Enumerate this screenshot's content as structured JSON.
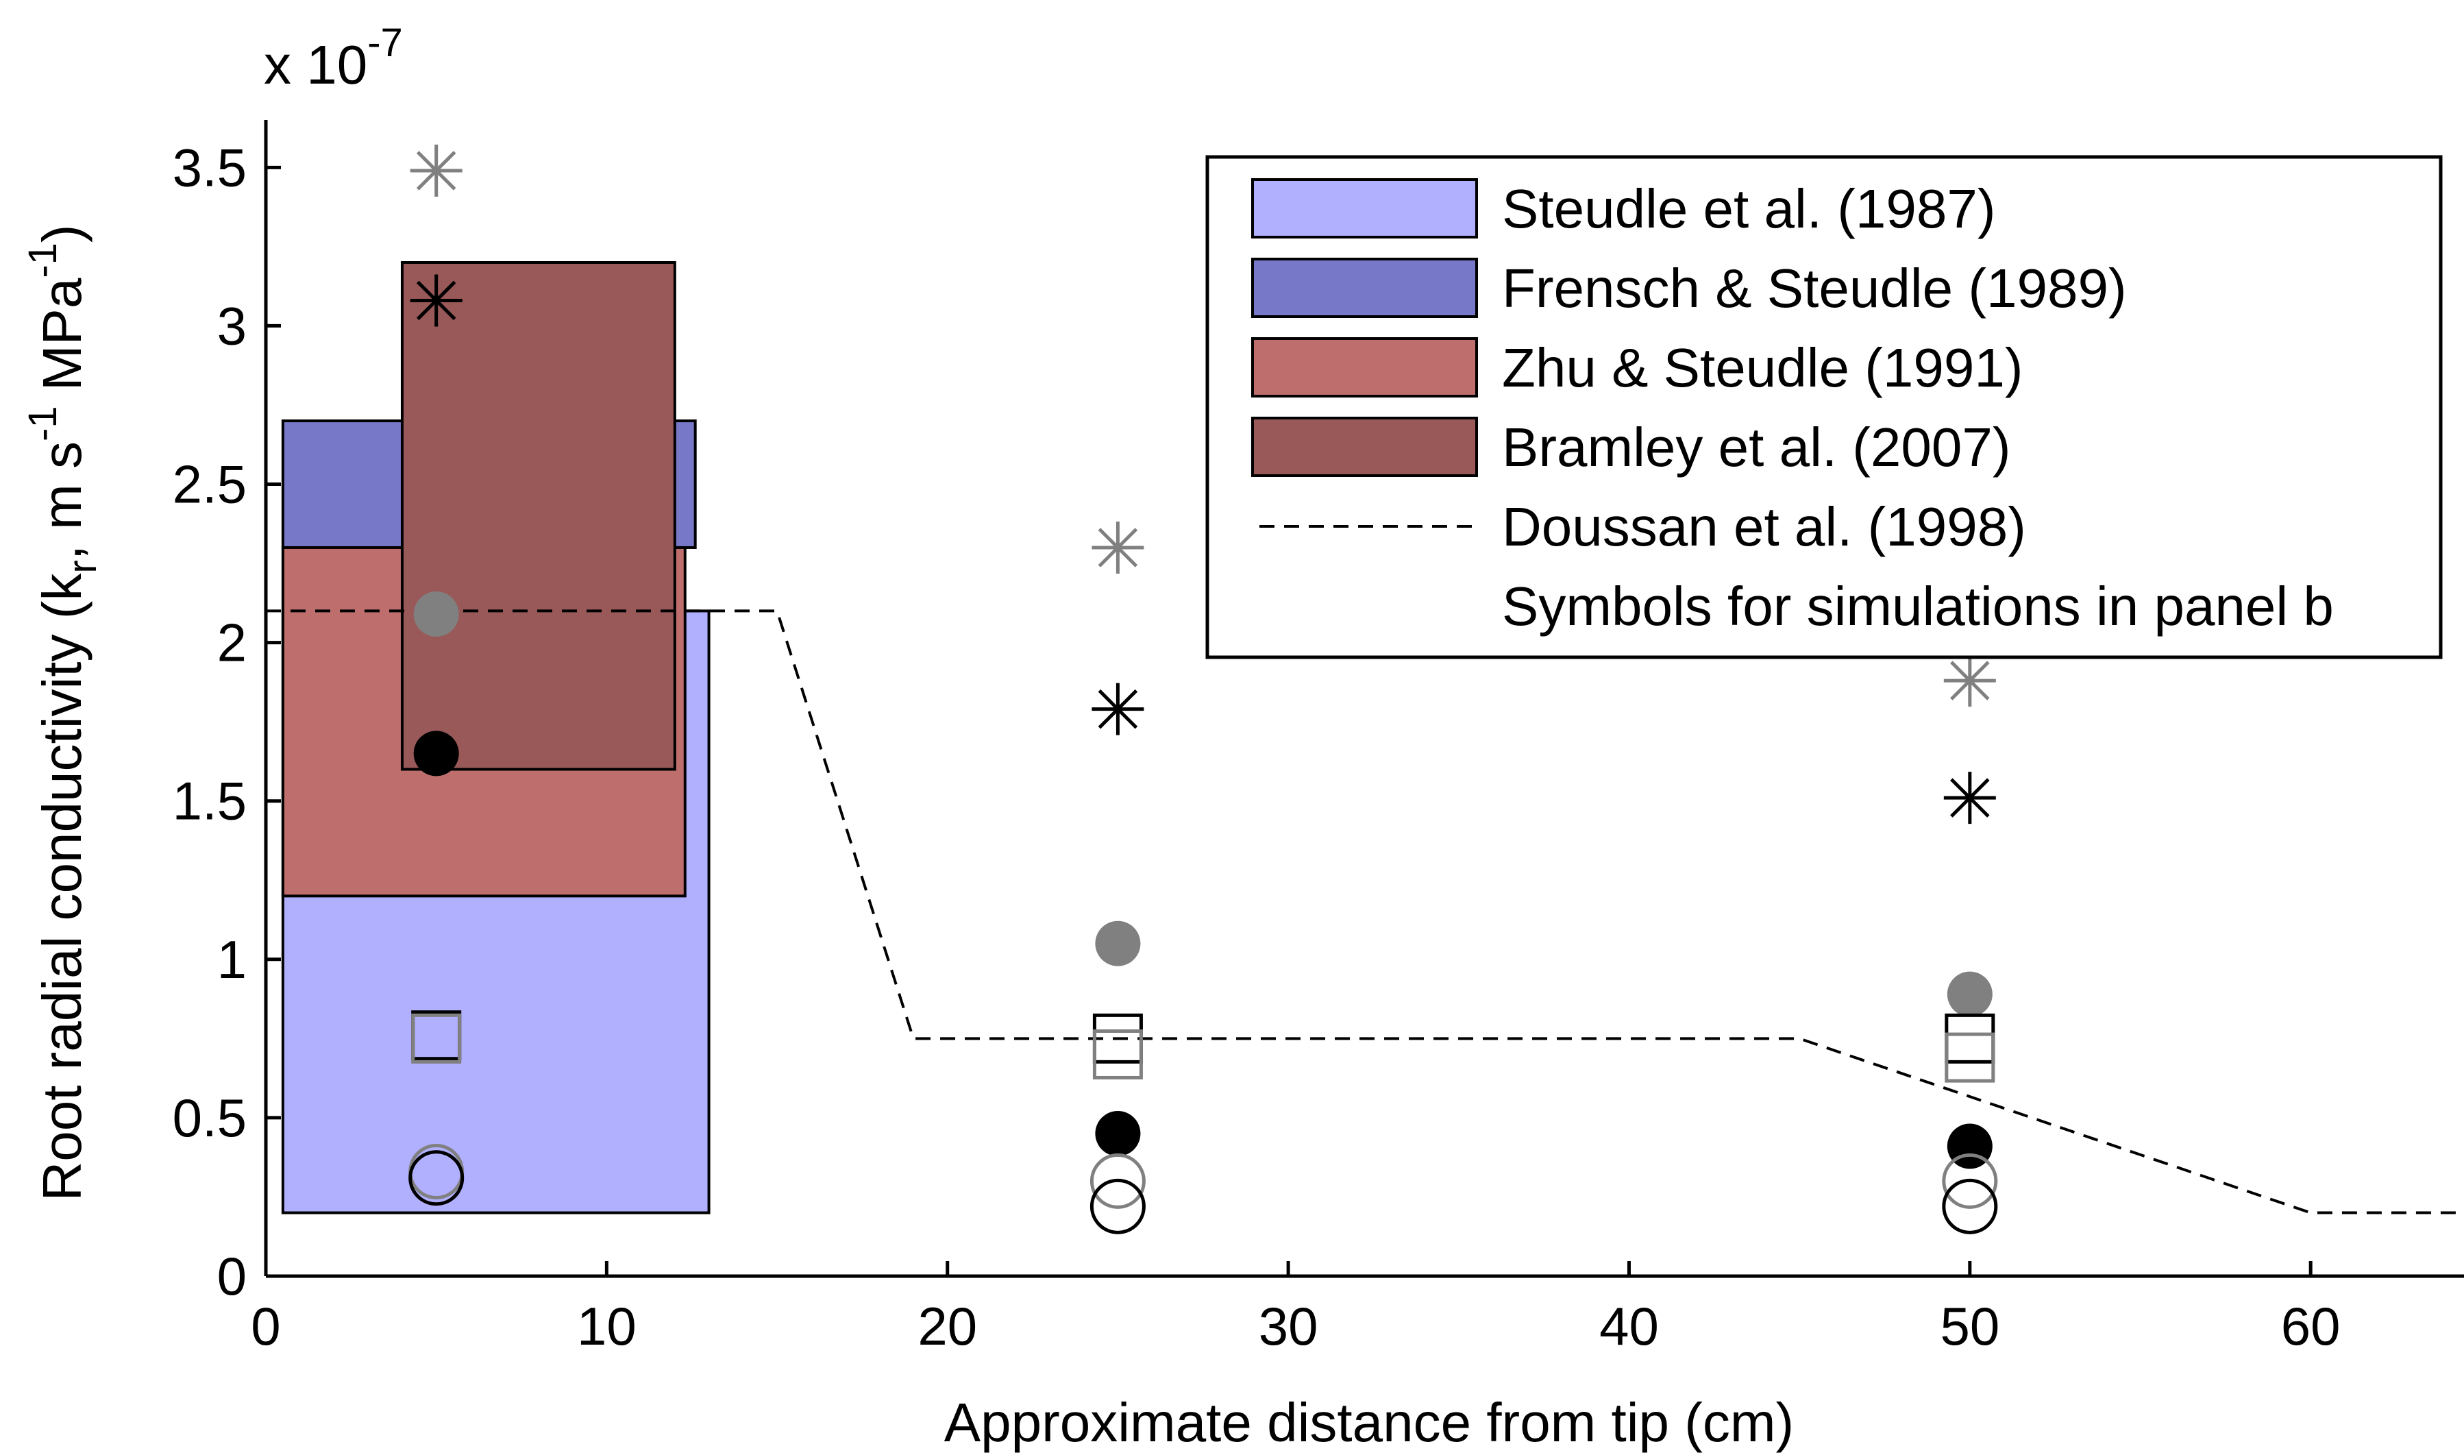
{
  "chart_data": {
    "type": "scatter",
    "xlabel": "Approximate distance from tip (cm)",
    "ylabel": {
      "main": "Root radial conductivity (k",
      "sub": "r",
      "units": ", m s",
      "sup1": "-1",
      "units2": " MPa",
      "sup2": "-1",
      "close": ")"
    },
    "exponent": {
      "base": "x 10",
      "power": "-7"
    },
    "xlim": [
      0,
      64.5
    ],
    "ylim": [
      0,
      3.65
    ],
    "y_scale_factor": 1e-07,
    "xticks": [
      0,
      10,
      20,
      30,
      40,
      50,
      60
    ],
    "yticks": [
      0,
      0.5,
      1,
      1.5,
      2,
      2.5,
      3,
      3.5
    ],
    "ytick_labels": [
      "0",
      "0.5",
      "1",
      "1.5",
      "2",
      "2.5",
      "3",
      "3.5"
    ],
    "grid": false,
    "legend_position": "top-right",
    "ranges": [
      {
        "name": "Steudle et al. (1987)",
        "color": "#b0b0ff",
        "x": [
          0.5,
          13
        ],
        "y": [
          0.2,
          2.1
        ]
      },
      {
        "name": "Frensch & Steudle (1989)",
        "color": "#7878c8",
        "x": [
          0.5,
          12.6
        ],
        "y": [
          2.3,
          2.7
        ]
      },
      {
        "name": "Zhu & Steudle (1991)",
        "color": "#bf6e6e",
        "x": [
          0.5,
          12.3
        ],
        "y": [
          1.2,
          2.3
        ]
      },
      {
        "name": "Bramley et al. (2007)",
        "color": "#995959",
        "x": [
          4,
          12
        ],
        "y": [
          1.6,
          3.2
        ]
      }
    ],
    "reference_line": {
      "name": "Doussan et al. (1998)",
      "style": "dashed",
      "x": [
        0,
        15,
        19,
        45,
        60,
        64.5
      ],
      "y": [
        2.1,
        2.1,
        0.75,
        0.75,
        0.2,
        0.2
      ]
    },
    "symbols_note": "Symbols for simulations in panel b",
    "symbol_series": [
      {
        "marker": "asterisk",
        "color": "#808080",
        "x": [
          5,
          25,
          50
        ],
        "y": [
          3.49,
          2.3,
          1.88
        ]
      },
      {
        "marker": "asterisk",
        "color": "#000000",
        "x": [
          5,
          25,
          50
        ],
        "y": [
          3.08,
          1.79,
          1.51
        ]
      },
      {
        "marker": "filled-circle",
        "color": "#808080",
        "x": [
          5,
          25,
          50
        ],
        "y": [
          2.09,
          1.05,
          0.89
        ]
      },
      {
        "marker": "filled-circle",
        "color": "#000000",
        "x": [
          5,
          25,
          50
        ],
        "y": [
          1.65,
          0.45,
          0.41
        ]
      },
      {
        "marker": "open-square",
        "color": "#000000",
        "x": [
          5,
          25,
          50
        ],
        "y": [
          0.76,
          0.75,
          0.75
        ]
      },
      {
        "marker": "open-square",
        "color": "#808080",
        "x": [
          5,
          25,
          50
        ],
        "y": [
          0.75,
          0.7,
          0.69
        ]
      },
      {
        "marker": "open-circle",
        "color": "#808080",
        "x": [
          5,
          25,
          50
        ],
        "y": [
          0.33,
          0.3,
          0.3
        ]
      },
      {
        "marker": "open-circle",
        "color": "#000000",
        "x": [
          5,
          25,
          50
        ],
        "y": [
          0.31,
          0.22,
          0.22
        ]
      }
    ]
  }
}
